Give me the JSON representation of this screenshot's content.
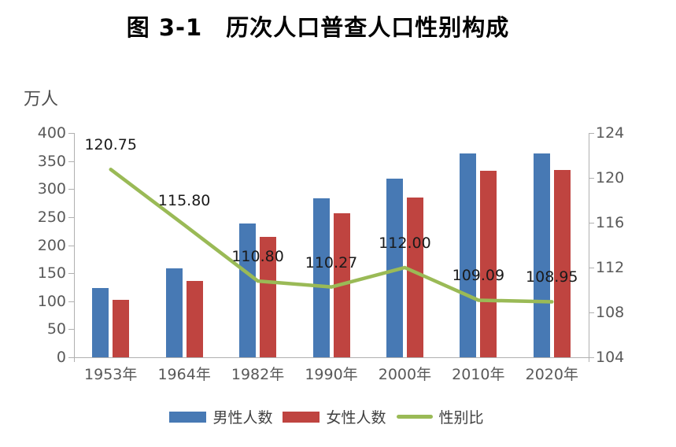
{
  "figure": {
    "title": "图 3-1　历次人口普查人口性别构成"
  },
  "chart_data": {
    "type": "bar",
    "combo": "grouped bars on left axis + line on right axis",
    "title": "图 3-1　历次人口普查人口性别构成",
    "categories": [
      "1953年",
      "1964年",
      "1982年",
      "1990年",
      "2000年",
      "2010年",
      "2020年"
    ],
    "series": [
      {
        "name": "男性人数",
        "type": "bar",
        "axis": "left",
        "color": "#4779b4",
        "values": [
          123,
          158,
          238,
          283,
          319,
          363,
          364
        ]
      },
      {
        "name": "女性人数",
        "type": "bar",
        "axis": "left",
        "color": "#bf4440",
        "values": [
          102,
          136.4,
          214.8,
          256.6,
          284.8,
          332.8,
          334.1
        ]
      },
      {
        "name": "性别比",
        "type": "line",
        "axis": "right",
        "color": "#9aba56",
        "values": [
          120.75,
          115.8,
          110.8,
          110.27,
          112.0,
          109.09,
          108.95
        ],
        "data_labels": [
          "120.75",
          "115.80",
          "110.80",
          "110.27",
          "112.00",
          "109.09",
          "108.95"
        ]
      }
    ],
    "left_axis": {
      "unit": "万人",
      "min": 0,
      "max": 400,
      "tick_step": 50,
      "ticks": [
        "400",
        "350",
        "300",
        "250",
        "200",
        "150",
        "100",
        "50",
        "0"
      ]
    },
    "right_axis": {
      "min": 104,
      "max": 124,
      "tick_step": 4,
      "ticks": [
        "124",
        "120",
        "116",
        "112",
        "108",
        "104"
      ]
    },
    "grid": false,
    "legend_position": "bottom"
  }
}
